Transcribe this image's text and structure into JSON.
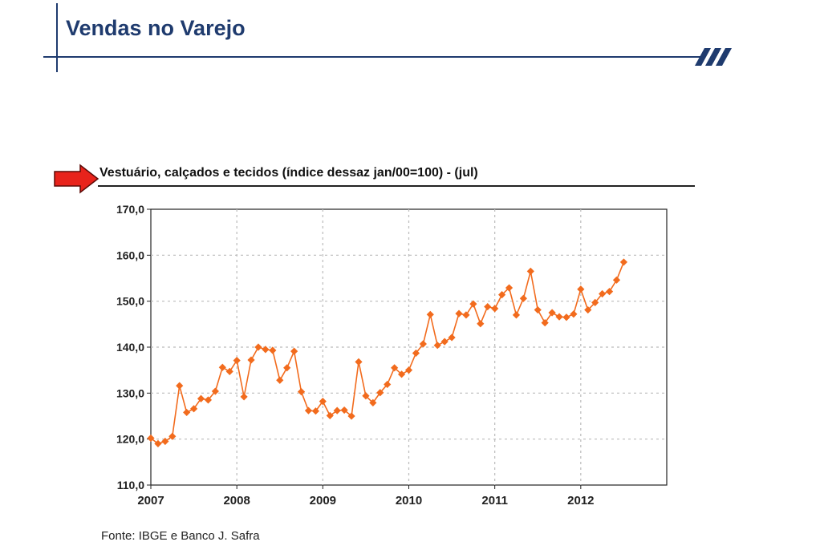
{
  "page": {
    "title": "Vendas no Varejo",
    "source": "Fonte: IBGE e Banco J. Safra"
  },
  "colors": {
    "brand_navy": "#1f3b6e",
    "series": "#f26b1d",
    "arrow": "#e8231b",
    "grid": "#bbbbbb"
  },
  "icons": {
    "logo": "three-slash-logo-icon",
    "pointer": "red-arrow-icon"
  },
  "chart_data": {
    "type": "line",
    "title": "Vestuário, calçados e tecidos (índice dessaz jan/00=100) - (jul)",
    "xlabel": "",
    "ylabel": "",
    "y_ticks": [
      "170,0",
      "160,0",
      "150,0",
      "140,0",
      "130,0",
      "120,0",
      "110,0"
    ],
    "ylim": [
      110,
      170
    ],
    "x_ticks": [
      "2007",
      "2008",
      "2009",
      "2010",
      "2011",
      "2012"
    ],
    "xlim": [
      "2007-01",
      "2012-12"
    ],
    "grid": true,
    "marker": "diamond",
    "series": [
      {
        "x": [
          "2007-01",
          "2007-02",
          "2007-03",
          "2007-04",
          "2007-05",
          "2007-06",
          "2007-07",
          "2007-08",
          "2007-09",
          "2007-10",
          "2007-11",
          "2007-12",
          "2008-01",
          "2008-02",
          "2008-03",
          "2008-04",
          "2008-05",
          "2008-06",
          "2008-07",
          "2008-08",
          "2008-09",
          "2008-10",
          "2008-11",
          "2008-12",
          "2009-01",
          "2009-02",
          "2009-03",
          "2009-04",
          "2009-05",
          "2009-06",
          "2009-07",
          "2009-08",
          "2009-09",
          "2009-10",
          "2009-11",
          "2009-12",
          "2010-01",
          "2010-02",
          "2010-03",
          "2010-04",
          "2010-05",
          "2010-06",
          "2010-07",
          "2010-08",
          "2010-09",
          "2010-10",
          "2010-11",
          "2010-12",
          "2011-01",
          "2011-02",
          "2011-03",
          "2011-04",
          "2011-05",
          "2011-06",
          "2011-07",
          "2011-08",
          "2011-09",
          "2011-10",
          "2011-11",
          "2011-12",
          "2012-01",
          "2012-02",
          "2012-03",
          "2012-04",
          "2012-05",
          "2012-06",
          "2012-07"
        ],
        "values": [
          120.2,
          119.0,
          119.5,
          120.6,
          131.6,
          125.8,
          126.6,
          128.8,
          128.5,
          130.4,
          135.6,
          134.7,
          137.1,
          129.2,
          137.2,
          140.0,
          139.5,
          139.3,
          132.8,
          135.5,
          139.1,
          130.3,
          126.2,
          126.1,
          128.2,
          125.1,
          126.2,
          126.3,
          125.0,
          136.8,
          129.4,
          127.9,
          130.1,
          131.9,
          135.5,
          134.1,
          135.0,
          138.7,
          140.7,
          147.1,
          140.4,
          141.2,
          142.1,
          147.3,
          147.0,
          149.4,
          145.1,
          148.8,
          148.4,
          151.4,
          152.9,
          147.0,
          150.6,
          156.5,
          148.1,
          145.3,
          147.5,
          146.6,
          146.5,
          147.2,
          152.6,
          148.1,
          149.7,
          151.6,
          152.1,
          154.6,
          158.5
        ]
      }
    ]
  }
}
